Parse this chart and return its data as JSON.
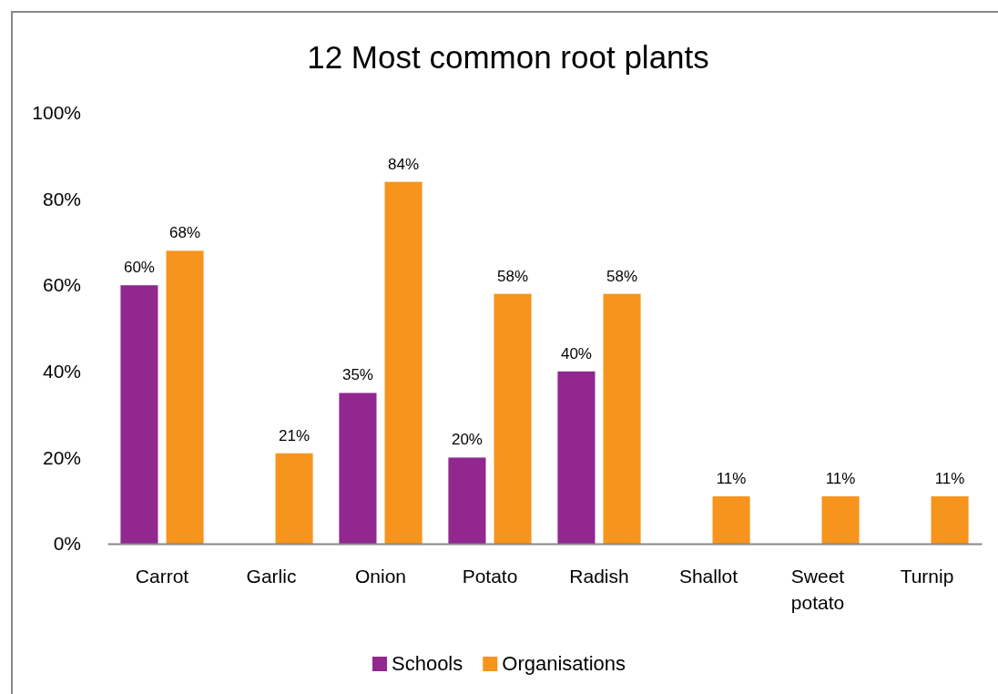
{
  "chart_data": {
    "type": "bar",
    "title": "12 Most common root plants",
    "categories": [
      "Carrot",
      "Garlic",
      "Onion",
      "Potato",
      "Radish",
      "Shallot",
      "Sweet potato",
      "Turnip"
    ],
    "series": [
      {
        "name": "Schools",
        "color": "#92278f",
        "values": [
          60,
          null,
          35,
          20,
          40,
          null,
          null,
          null
        ],
        "value_labels": [
          "60%",
          null,
          "35%",
          "20%",
          "40%",
          null,
          null,
          null
        ]
      },
      {
        "name": "Organisations",
        "color": "#f7941d",
        "values": [
          68,
          21,
          84,
          58,
          58,
          11,
          11,
          11
        ],
        "value_labels": [
          "68%",
          "21%",
          "84%",
          "58%",
          "58%",
          "11%",
          "11%",
          "11%"
        ]
      }
    ],
    "ylim": [
      0,
      100
    ],
    "yticks": [
      {
        "value": 0,
        "label": "0%"
      },
      {
        "value": 20,
        "label": "20%"
      },
      {
        "value": 40,
        "label": "40%"
      },
      {
        "value": 60,
        "label": "60%"
      },
      {
        "value": 80,
        "label": "80%"
      },
      {
        "value": 100,
        "label": "100%"
      }
    ],
    "grid": false,
    "legend": "bottom"
  }
}
